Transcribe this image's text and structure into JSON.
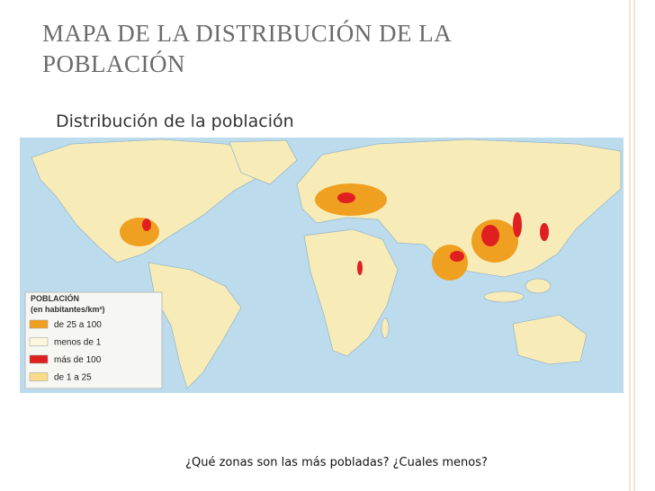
{
  "header": {
    "title_lines": [
      "MAPA DE LA DISTRIBUCIÓN DE LA",
      "POBLACIÓN"
    ]
  },
  "map": {
    "title": "Distribución de la población",
    "legend": {
      "title": "POBLACIÓN",
      "subtitle": "(en habitantes/km²)",
      "items": [
        {
          "label": "de 25 a 100",
          "color": "#f0a020"
        },
        {
          "label": "menos de 1",
          "color": "#fcf6dc"
        },
        {
          "label": "más de 100",
          "color": "#e02020"
        },
        {
          "label": "de 1 a 25",
          "color": "#f8dc8c"
        }
      ]
    }
  },
  "caption": "¿Qué  zonas son las más pobladas? ¿Cuales menos?"
}
